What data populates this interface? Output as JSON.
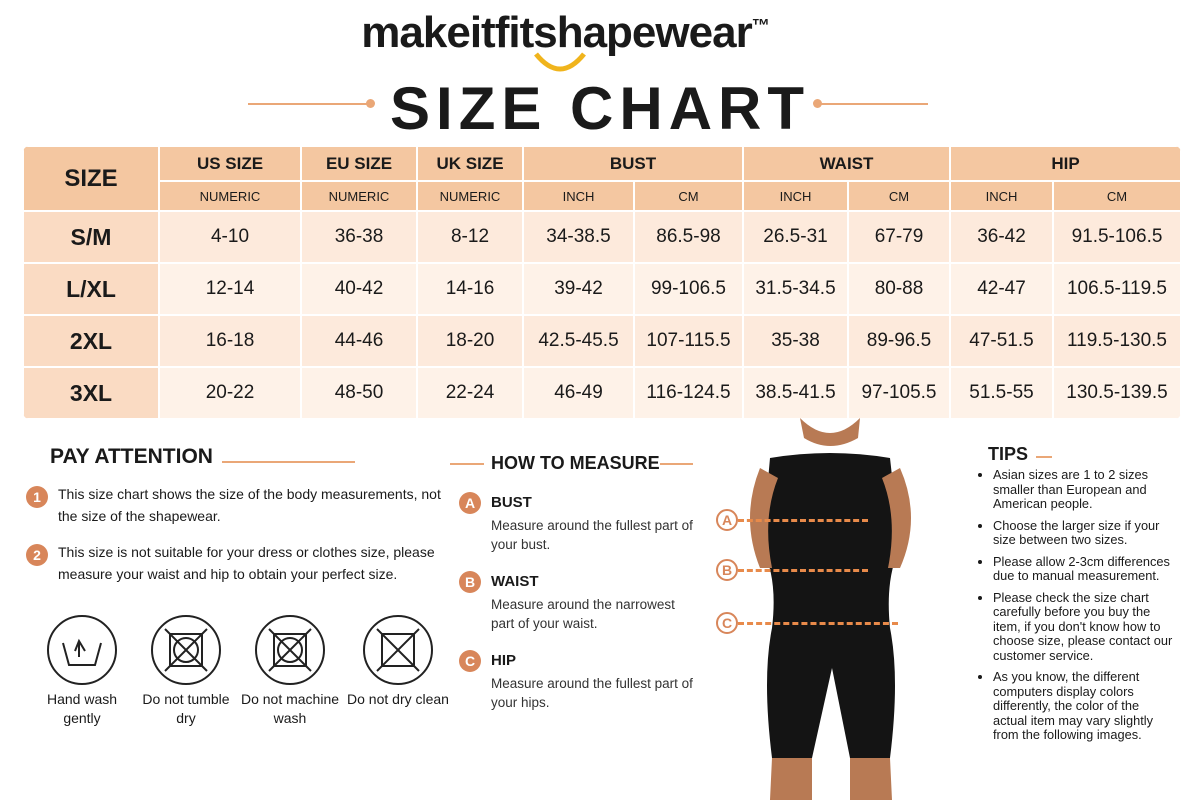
{
  "brand": "makeitfitshapewear",
  "trademark": "™",
  "title": "SIZE CHART",
  "table": {
    "size_header": "SIZE",
    "groups": [
      {
        "name": "US SIZE",
        "subs": [
          "NUMERIC"
        ]
      },
      {
        "name": "EU SIZE",
        "subs": [
          "NUMERIC"
        ]
      },
      {
        "name": "UK SIZE",
        "subs": [
          "NUMERIC"
        ]
      },
      {
        "name": "BUST",
        "subs": [
          "INCH",
          "CM"
        ]
      },
      {
        "name": "WAIST",
        "subs": [
          "INCH",
          "CM"
        ]
      },
      {
        "name": "HIP",
        "subs": [
          "INCH",
          "CM"
        ]
      }
    ],
    "rows": [
      [
        "S/M",
        "4-10",
        "36-38",
        "8-12",
        "34-38.5",
        "86.5-98",
        "26.5-31",
        "67-79",
        "36-42",
        "91.5-106.5"
      ],
      [
        "L/XL",
        "12-14",
        "40-42",
        "14-16",
        "39-42",
        "99-106.5",
        "31.5-34.5",
        "80-88",
        "42-47",
        "106.5-119.5"
      ],
      [
        "2XL",
        "16-18",
        "44-46",
        "18-20",
        "42.5-45.5",
        "107-115.5",
        "35-38",
        "89-96.5",
        "47-51.5",
        "119.5-130.5"
      ],
      [
        "3XL",
        "20-22",
        "48-50",
        "22-24",
        "46-49",
        "116-124.5",
        "38.5-41.5",
        "97-105.5",
        "51.5-55",
        "130.5-139.5"
      ]
    ]
  },
  "pay_attention": {
    "title": "PAY ATTENTION",
    "items": [
      {
        "number": "1",
        "text": "This size chart shows the size of the body measurements, not the size of the shapewear."
      },
      {
        "number": "2",
        "text": "This size is not suitable for your dress or clothes size, please measure your waist and hip to obtain your perfect size."
      }
    ]
  },
  "care": [
    "Hand wash gently",
    "Do not tumble dry",
    "Do not machine wash",
    "Do not dry clean"
  ],
  "how_to_measure": {
    "title": "HOW TO MEASURE",
    "items": [
      {
        "letter": "A",
        "name": "BUST",
        "text": "Measure around the fullest part of your bust."
      },
      {
        "letter": "B",
        "name": "WAIST",
        "text": "Measure around the narrowest part of your waist."
      },
      {
        "letter": "C",
        "name": "HIP",
        "text": "Measure around the fullest part of your hips."
      }
    ]
  },
  "tips": {
    "title": "TIPS",
    "items": [
      "Asian sizes are 1 to 2 sizes smaller than European and American people.",
      "Choose the larger size if your size between two sizes.",
      "Please allow 2-3cm differences due to manual measurement.",
      "Please check the size chart carefully before you buy the item, if you don't know how to choose size, please contact our customer service.",
      "As you know, the different computers display colors differently, the color of the actual item may vary slightly from the following images."
    ]
  }
}
